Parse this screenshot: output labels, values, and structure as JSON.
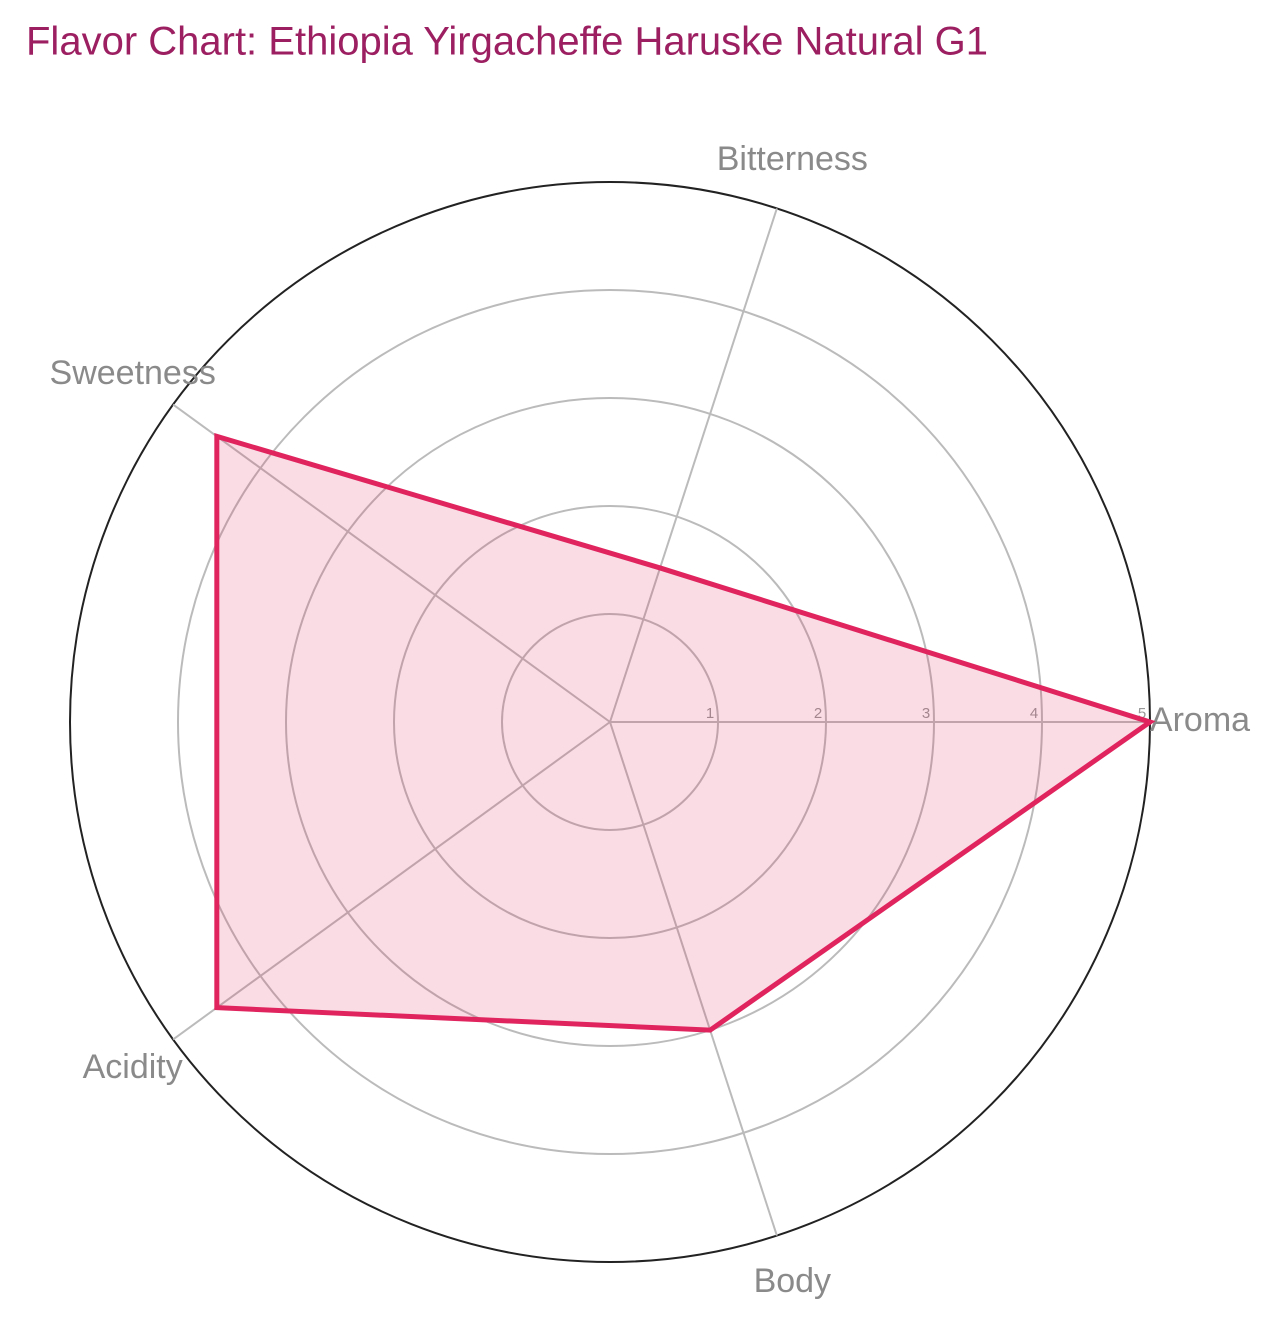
{
  "chart_data": {
    "type": "radar",
    "title": "Flavor Chart: Ethiopia Yirgacheffe Haruske Natural G1",
    "categories": [
      "Aroma",
      "Bitterness",
      "Sweetness",
      "Acidity",
      "Body"
    ],
    "values": [
      5,
      1.5,
      4.5,
      4.5,
      3
    ],
    "color": "#e0245e",
    "rlim": [
      0,
      5
    ],
    "rticks": [
      1,
      2,
      3,
      4,
      5
    ],
    "grid": true
  }
}
